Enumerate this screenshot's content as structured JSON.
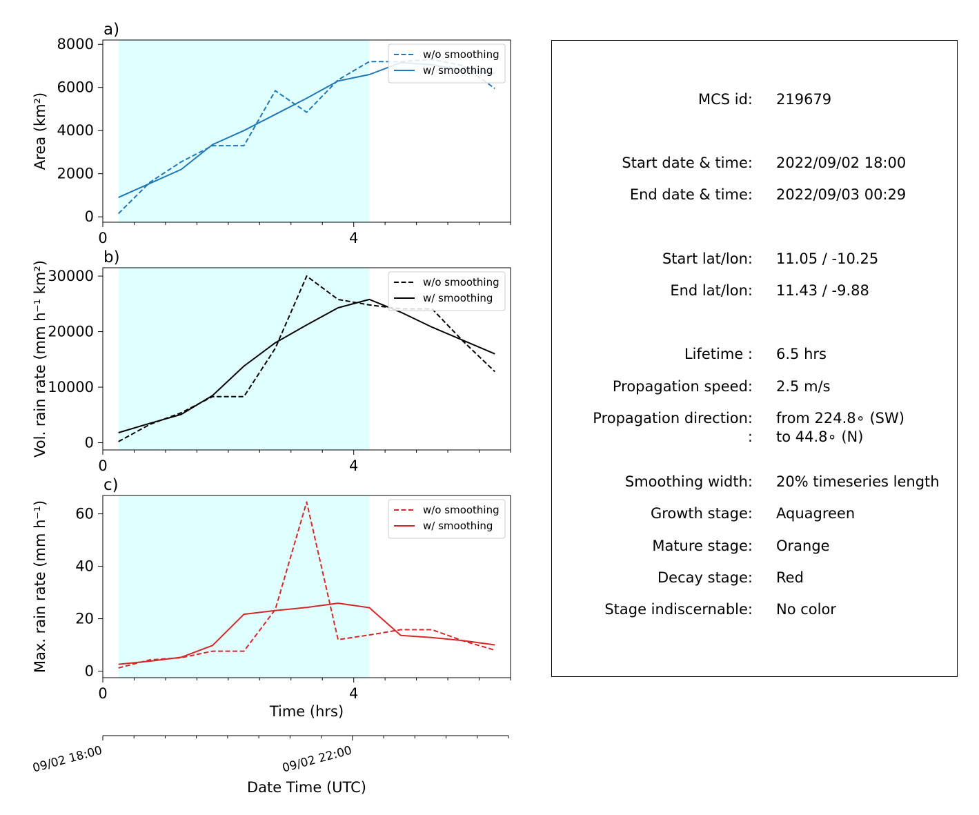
{
  "chart_data": [
    {
      "type": "line",
      "panel_label": "a)",
      "xlabel": "",
      "ylabel": "Area  (km²)",
      "xlim": [
        0,
        6.5
      ],
      "ylim": [
        -250,
        8200
      ],
      "x_ticks": [
        0,
        4
      ],
      "y_ticks": [
        0,
        2000,
        4000,
        6000,
        8000
      ],
      "stage_shading": {
        "x_start": 0.25,
        "x_end": 4.25,
        "color": "#e0ffff"
      },
      "legend_position": "top-right",
      "series": [
        {
          "name": "w/o smoothing",
          "style": "dashed",
          "color": "#1f77b4",
          "x": [
            0.25,
            0.75,
            1.25,
            1.75,
            2.25,
            2.75,
            3.25,
            3.75,
            4.25,
            4.75,
            5.25,
            5.75,
            6.25
          ],
          "y": [
            150,
            1600,
            2550,
            3300,
            3300,
            5850,
            4850,
            6350,
            7200,
            7200,
            7300,
            7000,
            5950
          ]
        },
        {
          "name": "w/ smoothing",
          "style": "solid",
          "color": "#1f77b4",
          "x": [
            0.25,
            0.75,
            1.25,
            1.75,
            2.25,
            2.75,
            3.25,
            3.75,
            4.25,
            4.75,
            5.25,
            5.75,
            6.25
          ],
          "y": [
            900,
            1550,
            2200,
            3350,
            4000,
            4750,
            5500,
            6300,
            6600,
            7150,
            7050,
            6800,
            6650
          ]
        }
      ]
    },
    {
      "type": "line",
      "panel_label": "b)",
      "xlabel": "",
      "ylabel": "Vol. rain rate (mm h⁻¹ km²)",
      "xlim": [
        0,
        6.5
      ],
      "ylim": [
        -1300,
        31500
      ],
      "x_ticks": [
        0,
        4
      ],
      "y_ticks": [
        0,
        10000,
        20000,
        30000
      ],
      "stage_shading": {
        "x_start": 0.25,
        "x_end": 4.25,
        "color": "#e0ffff"
      },
      "legend_position": "top-right",
      "series": [
        {
          "name": "w/o smoothing",
          "style": "dashed",
          "color": "#000000",
          "x": [
            0.25,
            0.75,
            1.25,
            1.75,
            2.25,
            2.75,
            3.25,
            3.75,
            4.25,
            4.75,
            5.25,
            5.75,
            6.25
          ],
          "y": [
            200,
            3300,
            5400,
            8300,
            8300,
            17000,
            30000,
            25800,
            24800,
            24100,
            24100,
            18200,
            12800
          ]
        },
        {
          "name": "w/ smoothing",
          "style": "solid",
          "color": "#000000",
          "x": [
            0.25,
            0.75,
            1.25,
            1.75,
            2.25,
            2.75,
            3.25,
            3.75,
            4.25,
            4.75,
            5.25,
            5.75,
            6.25
          ],
          "y": [
            1800,
            3500,
            5100,
            8500,
            13800,
            18000,
            21200,
            24300,
            25800,
            23500,
            20800,
            18400,
            16000
          ]
        }
      ]
    },
    {
      "type": "line",
      "panel_label": "c)",
      "xlabel": "Time (hrs)",
      "ylabel": "Max. rain rate  (mm h⁻¹)",
      "xlim": [
        0,
        6.5
      ],
      "ylim": [
        -2.5,
        67
      ],
      "x_ticks": [
        0,
        4
      ],
      "y_ticks": [
        0,
        20,
        40,
        60
      ],
      "stage_shading": {
        "x_start": 0.25,
        "x_end": 4.25,
        "color": "#e0ffff"
      },
      "legend_position": "top-right",
      "series": [
        {
          "name": "w/o smoothing",
          "style": "dashed",
          "color": "#d62728",
          "x": [
            0.25,
            0.75,
            1.25,
            1.75,
            2.25,
            2.75,
            3.25,
            3.75,
            4.25,
            4.75,
            5.25,
            5.75,
            6.25
          ],
          "y": [
            1.2,
            4.3,
            5.1,
            7.6,
            7.6,
            23.5,
            64.5,
            12.0,
            13.8,
            15.8,
            15.8,
            11.5,
            8.0
          ]
        },
        {
          "name": "w/ smoothing",
          "style": "solid",
          "color": "#d62728",
          "x": [
            0.25,
            0.75,
            1.25,
            1.75,
            2.25,
            2.75,
            3.25,
            3.75,
            4.25,
            4.75,
            5.25,
            5.75,
            6.25
          ],
          "y": [
            2.6,
            3.8,
            5.3,
            9.8,
            21.7,
            23.1,
            24.3,
            25.9,
            24.2,
            13.6,
            12.8,
            11.6,
            10.0
          ]
        }
      ]
    }
  ],
  "datetime_axis": {
    "label": "Date Time (UTC)",
    "tick_labels": [
      {
        "text": "09/02 18:00",
        "hour": 0
      },
      {
        "text": "09/02 22:00",
        "hour": 4
      }
    ],
    "minor_step_hours": 0.5
  },
  "info": {
    "mcs_id": {
      "key": "MCS id:",
      "value": "219679"
    },
    "start_time": {
      "key": "Start date & time:",
      "value": "2022/09/02 18:00"
    },
    "end_time": {
      "key": "End date & time:",
      "value": "2022/09/03 00:29"
    },
    "start_latlon": {
      "key": "Start lat/lon:",
      "value": "11.05 / -10.25"
    },
    "end_latlon": {
      "key": "End lat/lon:",
      "value": "11.43 / -9.88"
    },
    "lifetime": {
      "key": "Lifetime :",
      "value": "6.5 hrs"
    },
    "prop_speed": {
      "key": "Propagation speed:",
      "value": "2.5 m/s"
    },
    "prop_direction": {
      "key": "Propagation direction:",
      "value": "from 224.8∘ (SW)"
    },
    "prop_direction_2": {
      "key": ":",
      "value": "to    44.8∘ (N)"
    },
    "smoothing_width": {
      "key": "Smoothing width:",
      "value": "20% timeseries length"
    },
    "growth_stage": {
      "key": "Growth stage:",
      "value": "Aquagreen"
    },
    "mature_stage": {
      "key": "Mature stage:",
      "value": "Orange"
    },
    "decay_stage": {
      "key": "Decay stage:",
      "value": "Red"
    },
    "stage_indiscernable": {
      "key": "Stage indiscernable:",
      "value": "No color"
    }
  }
}
